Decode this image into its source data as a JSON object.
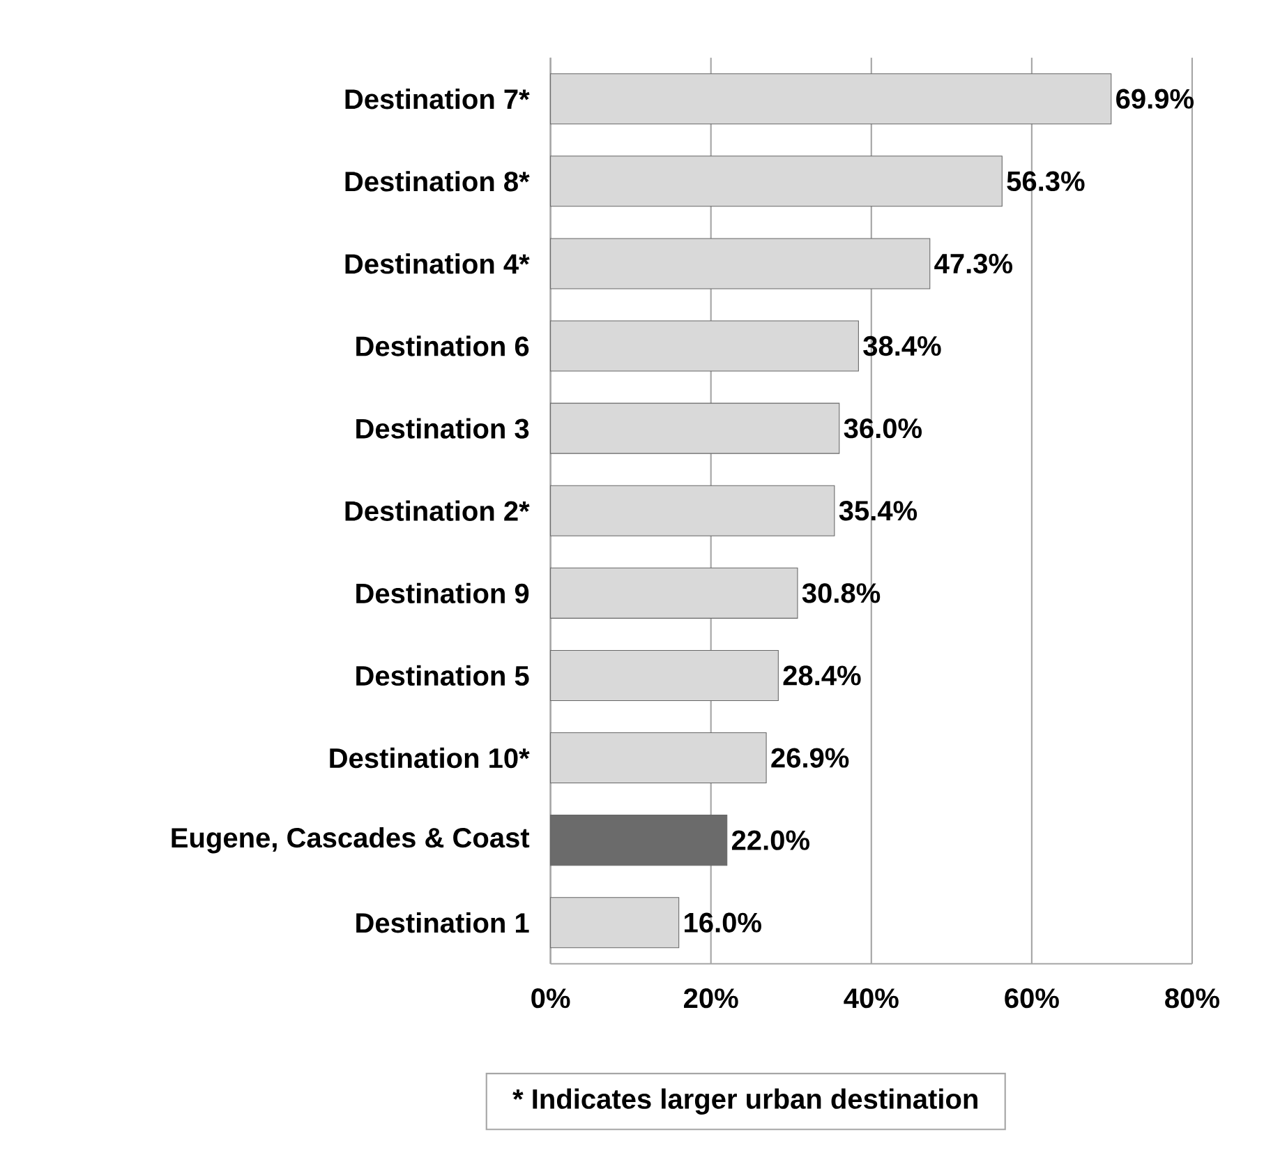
{
  "chart_data": {
    "type": "bar",
    "orientation": "horizontal",
    "categories": [
      "Destination 7*",
      "Destination 8*",
      "Destination 4*",
      "Destination 6",
      "Destination 3",
      "Destination 2*",
      "Destination 9",
      "Destination 5",
      "Destination 10*",
      "Eugene, Cascades & Coast",
      "Destination 1"
    ],
    "values": [
      69.9,
      56.3,
      47.3,
      38.4,
      36.0,
      35.4,
      30.8,
      28.4,
      26.9,
      22.0,
      16.0
    ],
    "value_labels": [
      "69.9%",
      "56.3%",
      "47.3%",
      "38.4%",
      "36.0%",
      "35.4%",
      "30.8%",
      "28.4%",
      "26.9%",
      "22.0%",
      "16.0%"
    ],
    "colors": [
      "#d9d9d9",
      "#d9d9d9",
      "#d9d9d9",
      "#d9d9d9",
      "#d9d9d9",
      "#d9d9d9",
      "#d9d9d9",
      "#d9d9d9",
      "#d9d9d9",
      "#6b6b6b",
      "#d9d9d9"
    ],
    "xlim": [
      0,
      80
    ],
    "xticks": [
      {
        "value": 0,
        "label": "0%"
      },
      {
        "value": 20,
        "label": "20%"
      },
      {
        "value": 40,
        "label": "40%"
      },
      {
        "value": 60,
        "label": "60%"
      },
      {
        "value": 80,
        "label": "80%"
      }
    ],
    "grid": "x",
    "annotations": [
      "* Indicates larger urban destination"
    ]
  }
}
